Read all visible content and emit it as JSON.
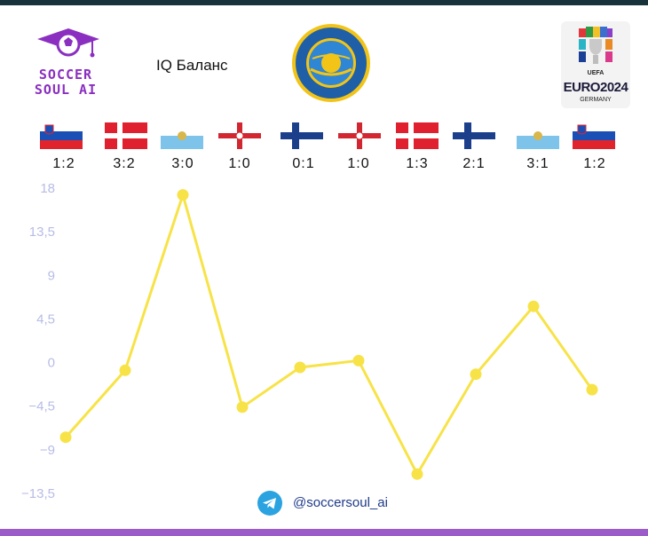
{
  "brand": {
    "line1": "SOCCER",
    "line2": "SOUL AI"
  },
  "title": "IQ Баланс",
  "euro": {
    "uefa": "UEFA",
    "euro": "EURO2024",
    "country": "GERMANY"
  },
  "matches": [
    {
      "flag": "slovenia",
      "score": "1:2"
    },
    {
      "flag": "denmark",
      "score": "3:2"
    },
    {
      "flag": "san-marino",
      "score": "3:0"
    },
    {
      "flag": "northern-ireland",
      "score": "1:0"
    },
    {
      "flag": "finland",
      "score": "0:1"
    },
    {
      "flag": "northern-ireland",
      "score": "1:0"
    },
    {
      "flag": "denmark",
      "score": "1:3"
    },
    {
      "flag": "finland",
      "score": "2:1"
    },
    {
      "flag": "san-marino",
      "score": "3:1"
    },
    {
      "flag": "slovenia",
      "score": "1:2"
    }
  ],
  "chart_data": {
    "type": "line",
    "title": "IQ Баланс",
    "categories": [
      "1:2",
      "3:2",
      "3:0",
      "1:0",
      "0:1",
      "1:0",
      "1:3",
      "2:1",
      "3:1",
      "1:2"
    ],
    "series": [
      {
        "values": [
          -7.7,
          -0.8,
          17.3,
          -4.6,
          -0.5,
          0.2,
          -11.5,
          -1.2,
          5.8,
          -2.8
        ]
      }
    ],
    "yticks": [
      18,
      13.5,
      9,
      4.5,
      0,
      -4.5,
      -9,
      -13.5
    ],
    "ytick_labels": [
      "18",
      "13,5",
      "9",
      "4,5",
      "0",
      "−4,5",
      "−9",
      "−13,5"
    ],
    "ylim": [
      -13.5,
      18
    ],
    "grid": false,
    "line_color": "#f7e348"
  },
  "footer": {
    "handle": "@soccersoul_ai"
  }
}
